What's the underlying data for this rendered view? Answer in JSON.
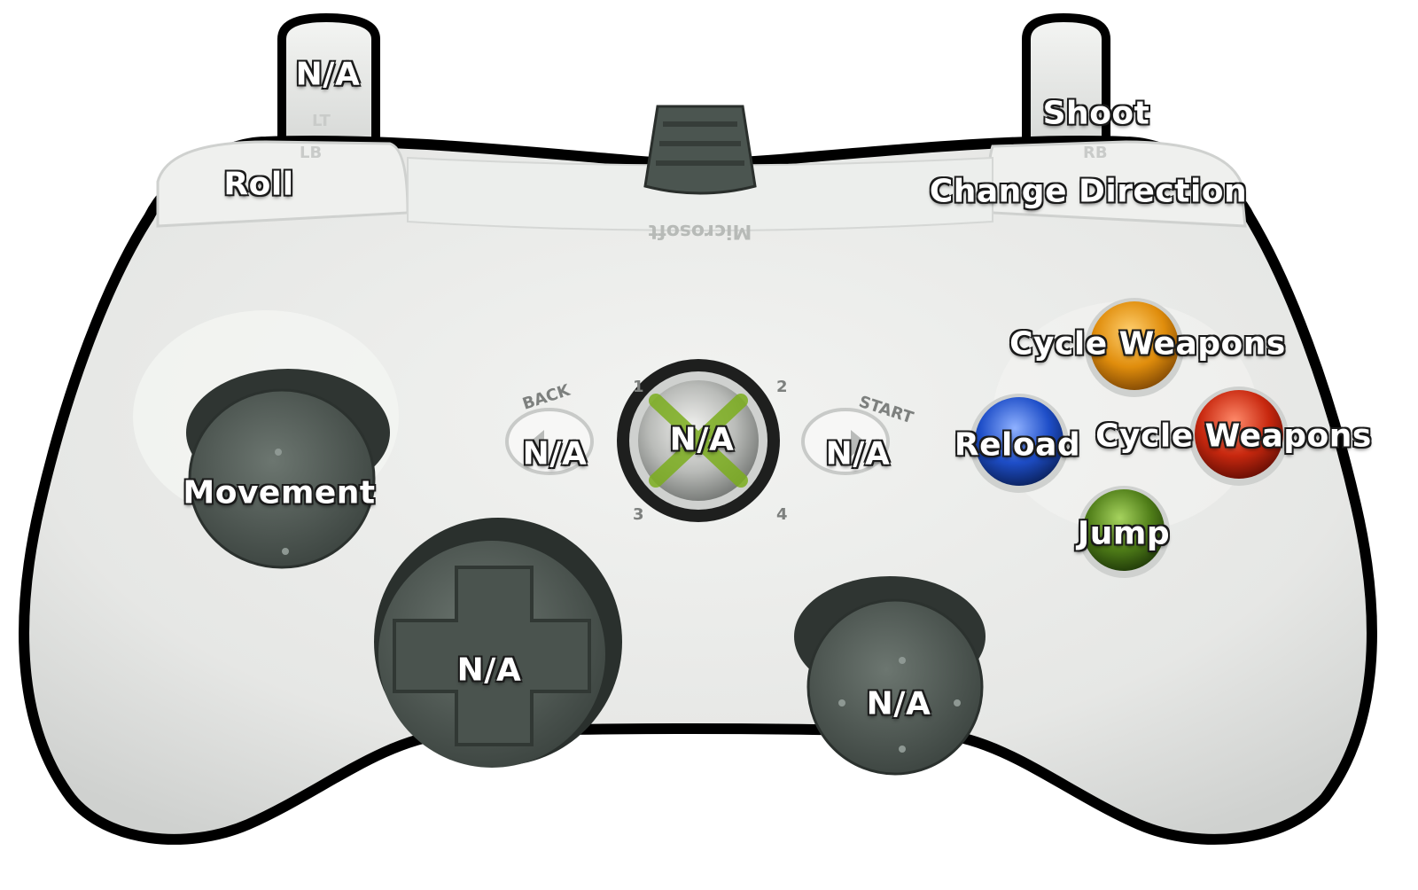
{
  "controller": {
    "brand": "Microsoft",
    "engraving": {
      "back": "BACK",
      "start": "START",
      "lt": "LT",
      "lb": "LB",
      "rb": "RB",
      "q1": "1",
      "q2": "2",
      "q3": "3",
      "q4": "4"
    },
    "colors": {
      "body": "#e9eae8",
      "outline": "#000000",
      "stick": "#55605a",
      "dpad": "#56605c",
      "button_y": "#d98a0a",
      "button_b": "#c52a12",
      "button_a": "#4f7d18",
      "button_x": "#1f4fc8",
      "guide_green": "#7cae1e"
    }
  },
  "mappings": {
    "left_trigger": "N/A",
    "left_bumper": "Roll",
    "right_trigger": "Shoot",
    "right_bumper": "Change Direction",
    "y_button": "Cycle Weapons",
    "b_button": "Cycle Weapons",
    "x_button": "Reload",
    "a_button": "Jump",
    "back_button": "N/A",
    "guide_button": "N/A",
    "start_button": "N/A",
    "left_stick": "Movement",
    "dpad": "N/A",
    "right_stick": "N/A"
  }
}
